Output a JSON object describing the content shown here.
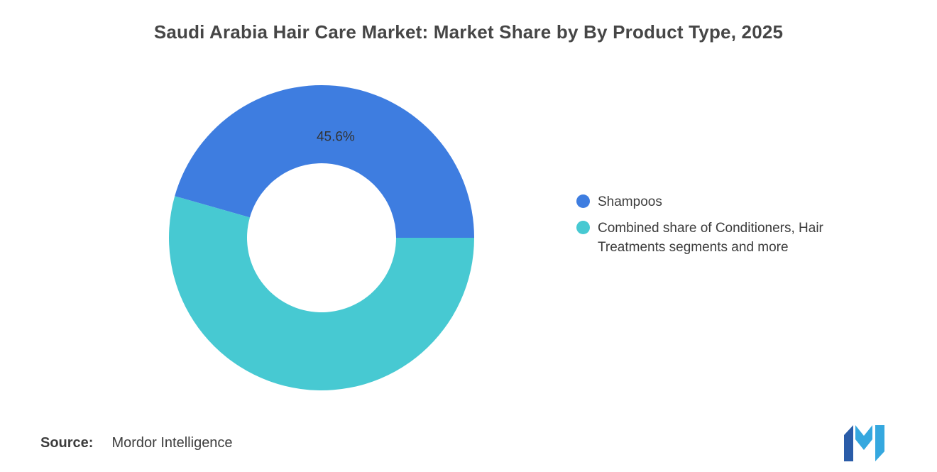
{
  "page": {
    "background": "#FFFFFF"
  },
  "title": "Saudi Arabia Hair Care Market: Market Share by By Product Type, 2025",
  "source": {
    "prefix": "Source:",
    "text": "Mordor Intelligence"
  },
  "logo": {
    "name": "Mordor Intelligence logo",
    "colors": {
      "dark": "#2A5CA8",
      "light": "#35A8DF"
    }
  },
  "chart_data": {
    "type": "pie",
    "subtype": "donut",
    "title": "Saudi Arabia Hair Care Market: Market Share by By Product Type, 2025",
    "total": 100,
    "start_angle_deg": 285.84,
    "hole_ratio": 0.49,
    "legend_position": "right",
    "data_label_color": "#333333",
    "slices": [
      {
        "name": "Shampoos",
        "value": 45.6,
        "color": "#3E7DE0",
        "data_label": "45.6%"
      },
      {
        "name": "Combined share of Conditioners, Hair Treatments segments and more",
        "value": 54.4,
        "color": "#47C9D2",
        "data_label": ""
      }
    ]
  }
}
